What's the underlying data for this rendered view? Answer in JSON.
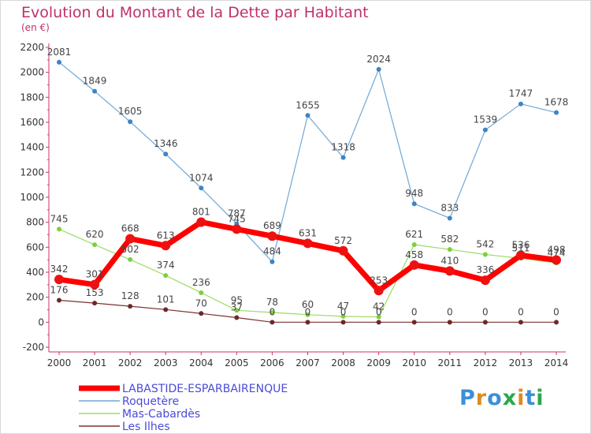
{
  "title": "Evolution du Montant de la Dette par Habitant",
  "subtitle": "(en €)",
  "logo": "Proxiti",
  "logo_colors": [
    "#3b8fd9",
    "#e08a1e",
    "#3b8fd9",
    "#2aa84a",
    "#e08a1e",
    "#3b8fd9",
    "#2aa84a"
  ],
  "chart_data": {
    "type": "line",
    "x": [
      2000,
      2001,
      2002,
      2003,
      2004,
      2005,
      2006,
      2007,
      2008,
      2009,
      2010,
      2011,
      2012,
      2013,
      2014
    ],
    "ylim": [
      -200,
      2200
    ],
    "yticks": [
      -200,
      0,
      200,
      400,
      600,
      800,
      1000,
      1200,
      1400,
      1600,
      1800,
      2000,
      2200
    ],
    "grid": false,
    "legend_position": "bottom-left",
    "series": [
      {
        "name": "LABASTIDE-ESPARBAIRENQUE",
        "color": "#ff0000",
        "values": [
          342,
          301,
          668,
          613,
          801,
          745,
          689,
          631,
          572,
          253,
          458,
          410,
          336,
          536,
          498
        ]
      },
      {
        "name": "Roquetère",
        "color": "#6fa7d6",
        "values": [
          2081,
          1849,
          1605,
          1346,
          1074,
          787,
          484,
          1655,
          1318,
          2024,
          948,
          833,
          1539,
          1747,
          1678
        ]
      },
      {
        "name": "Mas-Cabardès",
        "color": "#99dd66",
        "values": [
          745,
          620,
          502,
          374,
          236,
          95,
          78,
          60,
          47,
          42,
          621,
          582,
          542,
          511,
          474
        ]
      },
      {
        "name": "Les Ilhes",
        "color": "#7a3030",
        "values": [
          176,
          153,
          128,
          101,
          70,
          37,
          0,
          0,
          0,
          0,
          0,
          0,
          0,
          0,
          0
        ]
      }
    ]
  }
}
